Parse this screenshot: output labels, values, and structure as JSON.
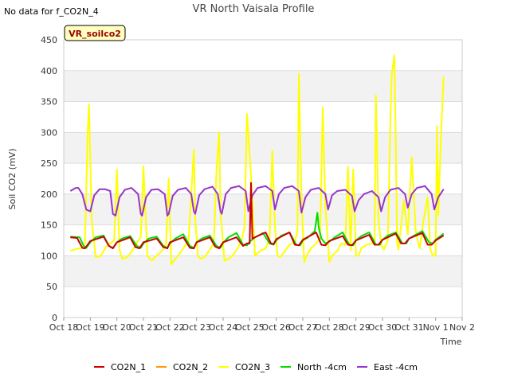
{
  "no_data_note": "No data for f_CO2N_4",
  "site_badge": "VR_soilco2",
  "chart_data": {
    "type": "line",
    "title": "VR North Vaisala Profile",
    "xlabel": "Time",
    "ylabel": "Soil CO2 (mV)",
    "ylim": [
      0,
      450
    ],
    "yticks": [
      0,
      50,
      100,
      150,
      200,
      250,
      300,
      350,
      400,
      450
    ],
    "xlim": [
      0,
      15
    ],
    "xtick_labels": [
      "Oct 18",
      "Oct 19",
      "Oct 20",
      "Oct 21",
      "Oct 22",
      "Oct 23",
      "Oct 24",
      "Oct 25",
      "Oct 26",
      "Oct 27",
      "Oct 28",
      "Oct 29",
      "Oct 30",
      "Oct 31",
      "Nov 1",
      "Nov 2"
    ],
    "legend_position": "bottom",
    "series": [
      {
        "name": "CO2N_1",
        "color": "#cc0000",
        "x": [
          0.25,
          0.5,
          0.7,
          0.8,
          1.0,
          1.5,
          1.7,
          1.85,
          2.0,
          2.5,
          2.7,
          2.85,
          3.0,
          3.5,
          3.75,
          3.9,
          4.0,
          4.5,
          4.75,
          4.9,
          5.0,
          5.5,
          5.7,
          5.85,
          6.0,
          6.5,
          6.75,
          6.9,
          7.0,
          7.05,
          7.1,
          7.3,
          7.6,
          7.8,
          7.9,
          8.0,
          8.5,
          8.7,
          8.85,
          9.0,
          9.5,
          9.7,
          9.85,
          10.0,
          10.5,
          10.7,
          10.85,
          11.0,
          11.5,
          11.7,
          11.85,
          12.0,
          12.5,
          12.7,
          12.85,
          13.0,
          13.5,
          13.7,
          13.85,
          14.0,
          14.3
        ],
        "y": [
          130,
          129,
          113,
          112,
          124,
          131,
          116,
          112,
          122,
          130,
          114,
          112,
          122,
          128,
          114,
          112,
          122,
          130,
          113,
          112,
          122,
          130,
          115,
          112,
          122,
          130,
          116,
          120,
          120,
          218,
          128,
          132,
          138,
          120,
          119,
          127,
          138,
          118,
          117,
          126,
          138,
          118,
          117,
          124,
          132,
          118,
          117,
          125,
          134,
          118,
          118,
          126,
          136,
          120,
          120,
          128,
          137,
          118,
          118,
          125,
          133
        ]
      },
      {
        "name": "CO2N_2",
        "color": "#ff9900",
        "x": [],
        "y": []
      },
      {
        "name": "CO2N_3",
        "color": "#ffff00",
        "x": [
          0.25,
          0.4,
          0.55,
          0.7,
          0.8,
          0.9,
          0.95,
          1.05,
          1.2,
          1.4,
          1.6,
          1.75,
          1.9,
          2.0,
          2.1,
          2.2,
          2.4,
          2.6,
          2.8,
          2.9,
          3.0,
          3.15,
          3.3,
          3.5,
          3.7,
          3.85,
          3.95,
          4.05,
          4.15,
          4.3,
          4.5,
          4.7,
          4.8,
          4.9,
          4.95,
          5.05,
          5.15,
          5.3,
          5.5,
          5.65,
          5.75,
          5.85,
          5.9,
          6.05,
          6.2,
          6.35,
          6.55,
          6.7,
          6.8,
          6.9,
          7.05,
          7.2,
          7.4,
          7.6,
          7.75,
          7.85,
          7.95,
          8.05,
          8.15,
          8.3,
          8.5,
          8.7,
          8.8,
          8.85,
          8.95,
          9.05,
          9.15,
          9.3,
          9.5,
          9.65,
          9.75,
          9.85,
          9.9,
          10.0,
          10.1,
          10.3,
          10.45,
          10.6,
          10.7,
          10.8,
          10.9,
          11.0,
          11.1,
          11.2,
          11.4,
          11.6,
          11.7,
          11.75,
          11.85,
          11.95,
          12.05,
          12.2,
          12.3,
          12.35,
          12.45,
          12.5,
          12.55,
          12.6,
          12.7,
          12.8,
          12.95,
          13.1,
          13.25,
          13.4,
          13.55,
          13.7,
          13.8,
          13.9,
          14.0,
          14.05,
          14.1,
          14.2,
          14.3
        ],
        "y": [
          108,
          110,
          112,
          112,
          120,
          300,
          345,
          160,
          98,
          100,
          115,
          120,
          125,
          240,
          110,
          95,
          98,
          110,
          124,
          130,
          245,
          100,
          92,
          100,
          108,
          118,
          225,
          86,
          92,
          100,
          112,
          125,
          200,
          272,
          160,
          100,
          95,
          98,
          110,
          120,
          240,
          300,
          170,
          92,
          95,
          100,
          112,
          126,
          145,
          330,
          230,
          100,
          108,
          112,
          128,
          270,
          150,
          100,
          98,
          106,
          118,
          122,
          140,
          395,
          200,
          90,
          100,
          112,
          120,
          128,
          340,
          180,
          150,
          90,
          100,
          108,
          120,
          118,
          245,
          110,
          240,
          100,
          100,
          112,
          118,
          120,
          120,
          360,
          160,
          118,
          110,
          125,
          330,
          395,
          425,
          280,
          120,
          110,
          150,
          190,
          135,
          260,
          140,
          112,
          160,
          195,
          110,
          100,
          100,
          310,
          165,
          290,
          390
        ]
      },
      {
        "name": "North -4cm",
        "color": "#00dd00",
        "x": [
          0.25,
          0.6,
          0.75,
          0.85,
          1.0,
          1.2,
          1.5,
          1.7,
          1.85,
          2.0,
          2.2,
          2.5,
          2.75,
          2.9,
          3.0,
          3.2,
          3.5,
          3.75,
          3.9,
          4.0,
          4.2,
          4.5,
          4.75,
          4.9,
          5.0,
          5.2,
          5.5,
          5.75,
          5.9,
          6.0,
          6.2,
          6.5,
          6.75,
          6.9,
          7.0,
          7.2,
          7.5,
          7.75,
          7.9,
          8.0,
          8.2,
          8.5,
          8.75,
          8.9,
          9.0,
          9.2,
          9.45,
          9.55,
          9.6,
          9.7,
          9.85,
          10.0,
          10.2,
          10.5,
          10.75,
          10.9,
          11.0,
          11.2,
          11.5,
          11.75,
          11.9,
          12.0,
          12.2,
          12.5,
          12.75,
          12.9,
          13.0,
          13.2,
          13.5,
          13.75,
          13.9,
          14.0,
          14.3
        ],
        "y": [
          131,
          130,
          116,
          113,
          122,
          130,
          133,
          116,
          113,
          122,
          128,
          132,
          116,
          113,
          120,
          128,
          131,
          116,
          113,
          120,
          128,
          135,
          116,
          113,
          122,
          128,
          133,
          116,
          113,
          121,
          130,
          137,
          118,
          117,
          123,
          130,
          137,
          120,
          118,
          125,
          133,
          138,
          118,
          117,
          125,
          130,
          140,
          170,
          145,
          128,
          120,
          123,
          130,
          138,
          118,
          117,
          125,
          132,
          138,
          118,
          118,
          126,
          133,
          138,
          120,
          120,
          128,
          133,
          140,
          122,
          120,
          126,
          136
        ]
      },
      {
        "name": "East -4cm",
        "color": "#9933cc",
        "x": [
          0.25,
          0.45,
          0.55,
          0.7,
          0.85,
          1.0,
          1.15,
          1.35,
          1.55,
          1.75,
          1.85,
          1.95,
          2.1,
          2.3,
          2.55,
          2.8,
          2.9,
          2.95,
          3.1,
          3.3,
          3.55,
          3.8,
          3.9,
          3.95,
          4.1,
          4.3,
          4.6,
          4.8,
          4.9,
          4.95,
          5.1,
          5.3,
          5.6,
          5.8,
          5.9,
          5.95,
          6.1,
          6.3,
          6.6,
          6.85,
          6.95,
          7.1,
          7.3,
          7.6,
          7.85,
          7.95,
          8.1,
          8.3,
          8.6,
          8.85,
          8.95,
          9.1,
          9.3,
          9.6,
          9.85,
          9.95,
          10.1,
          10.3,
          10.6,
          10.85,
          10.95,
          11.1,
          11.3,
          11.6,
          11.85,
          11.95,
          12.1,
          12.3,
          12.6,
          12.85,
          12.95,
          13.1,
          13.3,
          13.6,
          13.85,
          13.95,
          14.1,
          14.3
        ],
        "y": [
          205,
          210,
          210,
          200,
          175,
          172,
          198,
          208,
          208,
          205,
          168,
          165,
          195,
          207,
          210,
          200,
          168,
          165,
          195,
          207,
          208,
          200,
          165,
          168,
          197,
          207,
          210,
          200,
          172,
          168,
          198,
          208,
          212,
          200,
          172,
          168,
          200,
          210,
          213,
          205,
          172,
          198,
          210,
          213,
          205,
          175,
          200,
          210,
          213,
          205,
          170,
          195,
          207,
          210,
          200,
          175,
          198,
          205,
          207,
          197,
          172,
          190,
          200,
          205,
          195,
          172,
          195,
          207,
          210,
          200,
          178,
          200,
          210,
          213,
          200,
          175,
          195,
          208
        ]
      }
    ]
  }
}
